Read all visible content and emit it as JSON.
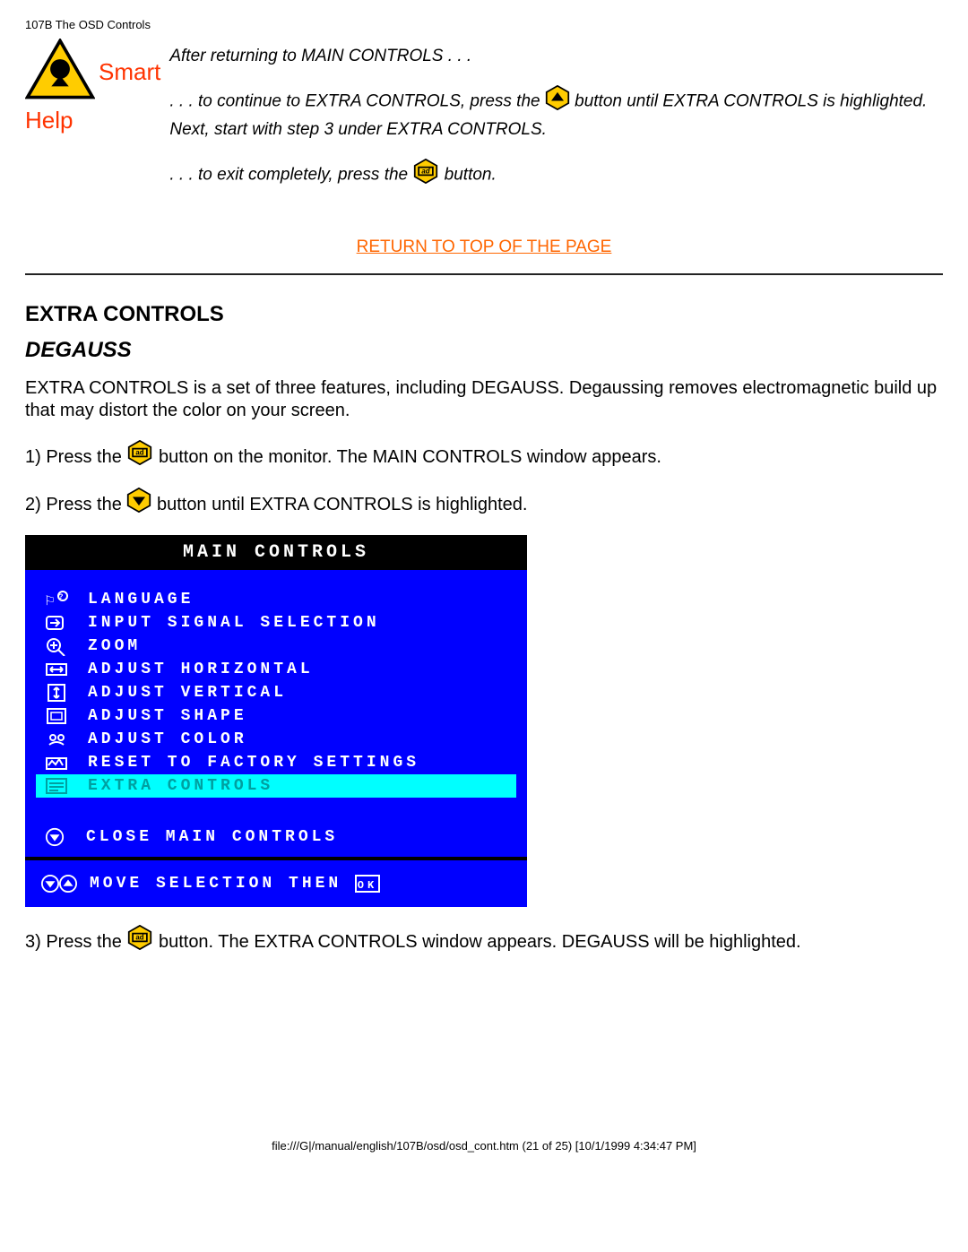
{
  "header_path": "107B The OSD Controls",
  "smart_help": {
    "smart": "Smart",
    "help": "Help",
    "line1a": "After returning to MAIN CONTROLS . . .",
    "line2a": ". . . to continue to EXTRA CONTROLS, press the ",
    "line2b": " button until EXTRA CONTROLS is highlighted. Next, start with step 3 under EXTRA CONTROLS.",
    "line3a": ". . . to exit completely, press the ",
    "line3b": " button."
  },
  "return_link": "RETURN TO TOP OF THE PAGE",
  "section_heading": "EXTRA CONTROLS",
  "subheading": "DEGAUSS",
  "intro": "EXTRA CONTROLS is a set of three features, including DEGAUSS. Degaussing removes electromagnetic build up that may distort the color on your screen.",
  "step1a": "1) Press the ",
  "step1b": " button on the monitor. The MAIN CONTROLS window appears.",
  "step2a": "2) Press the ",
  "step2b": " button until EXTRA CONTROLS is highlighted.",
  "step3a": "3) Press the ",
  "step3b": " button. The EXTRA CONTROLS window appears. DEGAUSS will be highlighted.",
  "osd": {
    "title": "MAIN CONTROLS",
    "items": [
      {
        "label": "LANGUAGE",
        "highlighted": false
      },
      {
        "label": "INPUT SIGNAL SELECTION",
        "highlighted": false
      },
      {
        "label": "ZOOM",
        "highlighted": false
      },
      {
        "label": "ADJUST HORIZONTAL",
        "highlighted": false
      },
      {
        "label": "ADJUST VERTICAL",
        "highlighted": false
      },
      {
        "label": "ADJUST SHAPE",
        "highlighted": false
      },
      {
        "label": "ADJUST COLOR",
        "highlighted": false
      },
      {
        "label": "RESET TO FACTORY SETTINGS",
        "highlighted": false
      },
      {
        "label": "EXTRA CONTROLS",
        "highlighted": true
      }
    ],
    "close": "CLOSE MAIN CONTROLS",
    "footer": "MOVE SELECTION THEN"
  },
  "footer_path": "file:///G|/manual/english/107B/osd/osd_cont.htm (21 of 25) [10/1/1999 4:34:47 PM]",
  "colors": {
    "link": "#ff6600",
    "osd_bg": "#0000ff",
    "osd_highlight": "#00ffff",
    "warn_yellow": "#ffcc00"
  }
}
